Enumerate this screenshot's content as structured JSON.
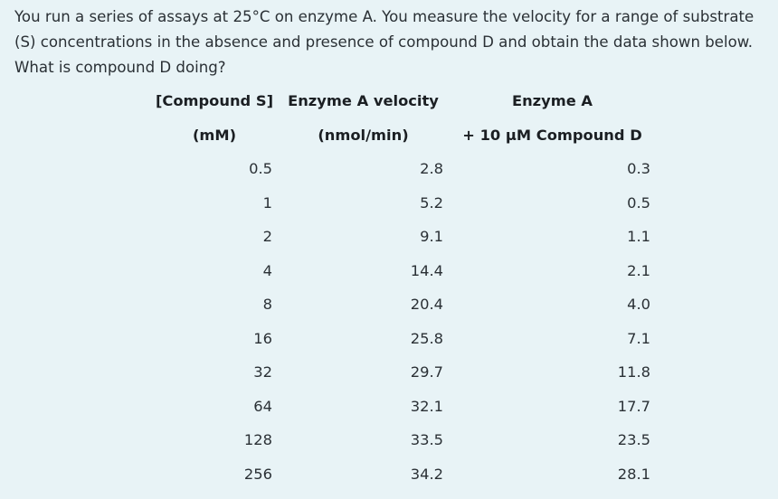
{
  "question": "You run a series of assays at 25°C on enzyme A. You measure the velocity for a range of substrate (S) concentrations in the absence and presence of compound D and obtain the data shown below. What is compound D doing?",
  "table": {
    "header_row1": [
      "[Compound S]",
      "Enzyme A velocity",
      "Enzyme A"
    ],
    "header_row2": [
      "(mM)",
      "(nmol/min)",
      "+ 10 µM Compound D"
    ],
    "rows": [
      [
        "0.5",
        "2.8",
        "0.3"
      ],
      [
        "1",
        "5.2",
        "0.5"
      ],
      [
        "2",
        "9.1",
        "1.1"
      ],
      [
        "4",
        "14.4",
        "2.1"
      ],
      [
        "8",
        "20.4",
        "4.0"
      ],
      [
        "16",
        "25.8",
        "7.1"
      ],
      [
        "32",
        "29.7",
        "11.8"
      ],
      [
        "64",
        "32.1",
        "17.7"
      ],
      [
        "128",
        "33.5",
        "23.5"
      ],
      [
        "256",
        "34.2",
        "28.1"
      ]
    ]
  }
}
